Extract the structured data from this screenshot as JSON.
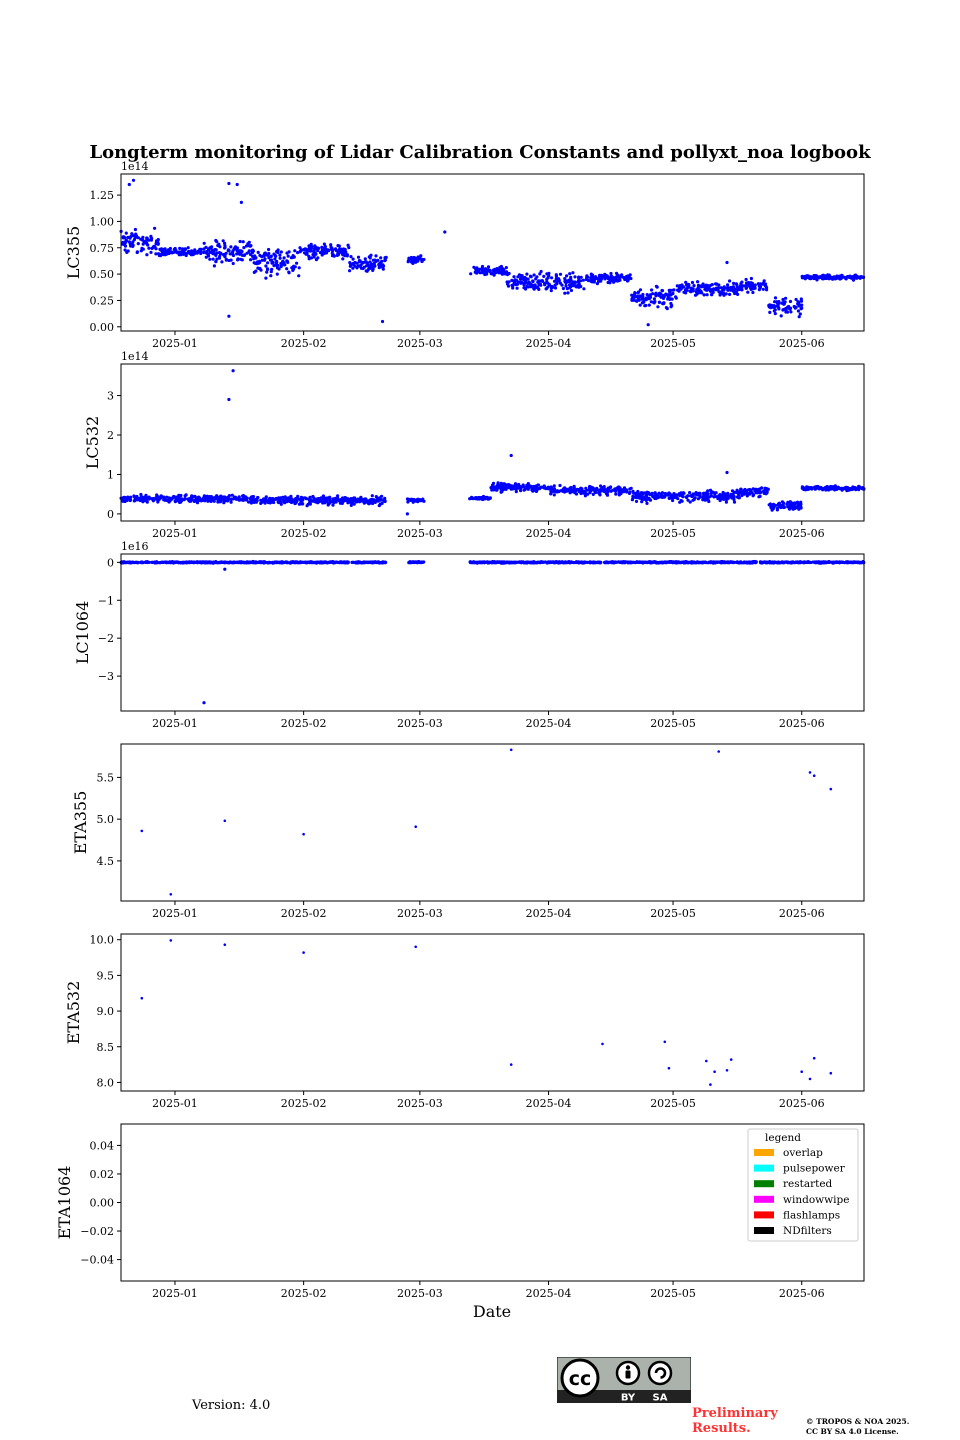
{
  "figure": {
    "title": "Longterm monitoring of Lidar Calibration Constants and pollyxt_noa logbook",
    "xlabel": "Date",
    "version_text": "Version: 4.0",
    "preliminary_text": "Preliminary Results.",
    "copyright_line1": "© TROPOS & NOA 2025.",
    "copyright_line2": "CC BY SA 4.0 License.",
    "license_badge": {
      "by": "BY",
      "sa": "SA",
      "cc": "cc"
    }
  },
  "colors": {
    "points": "#0000ff",
    "axis": "#000000",
    "badge_bg": "#aab2ab",
    "badge_dark": "#222222"
  },
  "chart_data": [
    {
      "type": "scatter",
      "name": "LC355",
      "ylabel": "LC355",
      "exponent_label": "1e14",
      "xlim": [
        "2024-12-19",
        "2025-06-16"
      ],
      "ylim": [
        -0.04,
        1.45
      ],
      "yticks": [
        0.0,
        0.25,
        0.5,
        0.75,
        1.0,
        1.25
      ],
      "ytick_labels": [
        "0.00",
        "0.25",
        "0.50",
        "0.75",
        "1.00",
        "1.25"
      ],
      "xticks": [
        "2025-01-01",
        "2025-02-01",
        "2025-03-01",
        "2025-04-01",
        "2025-05-01",
        "2025-06-01"
      ],
      "xtick_labels": [
        "2025-01",
        "2025-02",
        "2025-03",
        "2025-04",
        "2025-05",
        "2025-06"
      ],
      "segments": [
        {
          "start": "2024-12-19",
          "end": "2024-12-28",
          "mean": 0.8,
          "spread": 0.18
        },
        {
          "start": "2024-12-28",
          "end": "2025-01-08",
          "mean": 0.71,
          "spread": 0.05
        },
        {
          "start": "2025-01-08",
          "end": "2025-01-20",
          "mean": 0.72,
          "spread": 0.16
        },
        {
          "start": "2025-01-20",
          "end": "2025-01-31",
          "mean": 0.62,
          "spread": 0.2
        },
        {
          "start": "2025-01-31",
          "end": "2025-02-12",
          "mean": 0.72,
          "spread": 0.1
        },
        {
          "start": "2025-02-12",
          "end": "2025-02-21",
          "mean": 0.6,
          "spread": 0.12
        },
        {
          "start": "2025-02-26",
          "end": "2025-03-02",
          "mean": 0.64,
          "spread": 0.05
        },
        {
          "start": "2025-03-13",
          "end": "2025-03-22",
          "mean": 0.53,
          "spread": 0.05
        },
        {
          "start": "2025-03-22",
          "end": "2025-04-10",
          "mean": 0.42,
          "spread": 0.12
        },
        {
          "start": "2025-04-10",
          "end": "2025-04-21",
          "mean": 0.46,
          "spread": 0.06
        },
        {
          "start": "2025-04-21",
          "end": "2025-05-02",
          "mean": 0.28,
          "spread": 0.14
        },
        {
          "start": "2025-05-02",
          "end": "2025-05-17",
          "mean": 0.36,
          "spread": 0.1
        },
        {
          "start": "2025-05-17",
          "end": "2025-05-24",
          "mean": 0.39,
          "spread": 0.08
        },
        {
          "start": "2025-05-24",
          "end": "2025-06-01",
          "mean": 0.2,
          "spread": 0.12
        },
        {
          "start": "2025-06-01",
          "end": "2025-06-16",
          "mean": 0.47,
          "spread": 0.03
        }
      ],
      "outliers": [
        {
          "date": "2024-12-21",
          "value": 1.35
        },
        {
          "date": "2024-12-22",
          "value": 1.39
        },
        {
          "date": "2025-01-14",
          "value": 1.36
        },
        {
          "date": "2025-01-16",
          "value": 1.35
        },
        {
          "date": "2025-01-17",
          "value": 1.18
        },
        {
          "date": "2025-01-14",
          "value": 0.1
        },
        {
          "date": "2025-02-20",
          "value": 0.05
        },
        {
          "date": "2025-03-07",
          "value": 0.9
        },
        {
          "date": "2025-04-25",
          "value": 0.02
        },
        {
          "date": "2025-05-14",
          "value": 0.61
        }
      ]
    },
    {
      "type": "scatter",
      "name": "LC532",
      "ylabel": "LC532",
      "exponent_label": "1e14",
      "xlim": [
        "2024-12-19",
        "2025-06-16"
      ],
      "ylim": [
        -0.18,
        3.8
      ],
      "yticks": [
        0,
        1,
        2,
        3
      ],
      "ytick_labels": [
        "0",
        "1",
        "2",
        "3"
      ],
      "xticks": [
        "2025-01-01",
        "2025-02-01",
        "2025-03-01",
        "2025-04-01",
        "2025-05-01",
        "2025-06-01"
      ],
      "xtick_labels": [
        "2025-01",
        "2025-02",
        "2025-03",
        "2025-04",
        "2025-05",
        "2025-06"
      ],
      "segments": [
        {
          "start": "2024-12-19",
          "end": "2025-01-20",
          "mean": 0.38,
          "spread": 0.12
        },
        {
          "start": "2025-01-20",
          "end": "2025-02-21",
          "mean": 0.34,
          "spread": 0.14
        },
        {
          "start": "2025-02-26",
          "end": "2025-03-02",
          "mean": 0.35,
          "spread": 0.06
        },
        {
          "start": "2025-03-13",
          "end": "2025-03-18",
          "mean": 0.4,
          "spread": 0.05
        },
        {
          "start": "2025-03-18",
          "end": "2025-04-01",
          "mean": 0.68,
          "spread": 0.15
        },
        {
          "start": "2025-04-01",
          "end": "2025-04-21",
          "mean": 0.6,
          "spread": 0.15
        },
        {
          "start": "2025-04-21",
          "end": "2025-05-17",
          "mean": 0.45,
          "spread": 0.2
        },
        {
          "start": "2025-05-17",
          "end": "2025-05-24",
          "mean": 0.55,
          "spread": 0.15
        },
        {
          "start": "2025-05-24",
          "end": "2025-06-01",
          "mean": 0.2,
          "spread": 0.15
        },
        {
          "start": "2025-06-01",
          "end": "2025-06-16",
          "mean": 0.65,
          "spread": 0.07
        }
      ],
      "outliers": [
        {
          "date": "2025-01-14",
          "value": 2.9
        },
        {
          "date": "2025-01-15",
          "value": 3.63
        },
        {
          "date": "2025-03-23",
          "value": 1.48
        },
        {
          "date": "2025-05-14",
          "value": 1.05
        },
        {
          "date": "2025-02-26",
          "value": 0.0
        }
      ]
    },
    {
      "type": "scatter",
      "name": "LC1064",
      "ylabel": "LC1064",
      "exponent_label": "1e16",
      "xlim": [
        "2024-12-19",
        "2025-06-16"
      ],
      "ylim": [
        -3.92,
        0.22
      ],
      "yticks": [
        0,
        -1,
        -2,
        -3
      ],
      "ytick_labels": [
        "0",
        "−1",
        "−2",
        "−3"
      ],
      "xticks": [
        "2025-01-01",
        "2025-02-01",
        "2025-03-01",
        "2025-04-01",
        "2025-05-01",
        "2025-06-01"
      ],
      "xtick_labels": [
        "2025-01",
        "2025-02",
        "2025-03",
        "2025-04",
        "2025-05",
        "2025-06"
      ],
      "segments": [
        {
          "start": "2024-12-19",
          "end": "2025-02-21",
          "mean": 0.0,
          "spread": 0.025
        },
        {
          "start": "2025-02-26",
          "end": "2025-03-02",
          "mean": 0.0,
          "spread": 0.025
        },
        {
          "start": "2025-03-13",
          "end": "2025-06-16",
          "mean": 0.0,
          "spread": 0.025
        }
      ],
      "outliers": [
        {
          "date": "2025-01-08",
          "value": -3.7
        },
        {
          "date": "2025-01-13",
          "value": -0.18
        }
      ]
    },
    {
      "type": "scatter",
      "name": "ETA355",
      "ylabel": "ETA355",
      "xlim": [
        "2024-12-19",
        "2025-06-16"
      ],
      "ylim": [
        4.02,
        5.9
      ],
      "yticks": [
        4.5,
        5.0,
        5.5
      ],
      "ytick_labels": [
        "4.5",
        "5.0",
        "5.5"
      ],
      "xticks": [
        "2025-01-01",
        "2025-02-01",
        "2025-03-01",
        "2025-04-01",
        "2025-05-01",
        "2025-06-01"
      ],
      "xtick_labels": [
        "2025-01",
        "2025-02",
        "2025-03",
        "2025-04",
        "2025-05",
        "2025-06"
      ],
      "points": [
        {
          "date": "2024-12-24",
          "value": 4.86
        },
        {
          "date": "2024-12-31",
          "value": 4.1
        },
        {
          "date": "2025-01-13",
          "value": 4.98
        },
        {
          "date": "2025-02-01",
          "value": 4.82
        },
        {
          "date": "2025-02-28",
          "value": 4.91
        },
        {
          "date": "2025-03-23",
          "value": 5.83
        },
        {
          "date": "2025-05-12",
          "value": 5.81
        },
        {
          "date": "2025-06-03",
          "value": 5.56
        },
        {
          "date": "2025-06-04",
          "value": 5.52
        },
        {
          "date": "2025-06-08",
          "value": 5.36
        }
      ]
    },
    {
      "type": "scatter",
      "name": "ETA532",
      "ylabel": "ETA532",
      "xlim": [
        "2024-12-19",
        "2025-06-16"
      ],
      "ylim": [
        7.88,
        10.08
      ],
      "yticks": [
        8.0,
        8.5,
        9.0,
        9.5,
        10.0
      ],
      "ytick_labels": [
        "8.0",
        "8.5",
        "9.0",
        "9.5",
        "10.0"
      ],
      "xticks": [
        "2025-01-01",
        "2025-02-01",
        "2025-03-01",
        "2025-04-01",
        "2025-05-01",
        "2025-06-01"
      ],
      "xtick_labels": [
        "2025-01",
        "2025-02",
        "2025-03",
        "2025-04",
        "2025-05",
        "2025-06"
      ],
      "points": [
        {
          "date": "2024-12-24",
          "value": 9.18
        },
        {
          "date": "2024-12-31",
          "value": 9.99
        },
        {
          "date": "2025-01-13",
          "value": 9.93
        },
        {
          "date": "2025-02-01",
          "value": 9.82
        },
        {
          "date": "2025-02-28",
          "value": 9.9
        },
        {
          "date": "2025-03-23",
          "value": 8.25
        },
        {
          "date": "2025-04-14",
          "value": 8.54
        },
        {
          "date": "2025-04-29",
          "value": 8.57
        },
        {
          "date": "2025-04-30",
          "value": 8.2
        },
        {
          "date": "2025-05-09",
          "value": 8.3
        },
        {
          "date": "2025-05-10",
          "value": 7.97
        },
        {
          "date": "2025-05-11",
          "value": 8.15
        },
        {
          "date": "2025-05-14",
          "value": 8.17
        },
        {
          "date": "2025-05-15",
          "value": 8.32
        },
        {
          "date": "2025-06-01",
          "value": 8.15
        },
        {
          "date": "2025-06-03",
          "value": 8.05
        },
        {
          "date": "2025-06-04",
          "value": 8.34
        },
        {
          "date": "2025-06-08",
          "value": 8.13
        }
      ]
    },
    {
      "type": "scatter",
      "name": "ETA1064",
      "ylabel": "ETA1064",
      "xlim": [
        "2024-12-19",
        "2025-06-16"
      ],
      "ylim": [
        -0.055,
        0.055
      ],
      "yticks": [
        0.04,
        0.02,
        0.0,
        -0.02,
        -0.04
      ],
      "ytick_labels": [
        "0.04",
        "0.02",
        "0.00",
        "−0.02",
        "−0.04"
      ],
      "xticks": [
        "2025-01-01",
        "2025-02-01",
        "2025-03-01",
        "2025-04-01",
        "2025-05-01",
        "2025-06-01"
      ],
      "xtick_labels": [
        "2025-01",
        "2025-02",
        "2025-03",
        "2025-04",
        "2025-05",
        "2025-06"
      ],
      "points": [],
      "legend": {
        "title": "legend",
        "placement": "top-right",
        "entries": [
          {
            "label": "overlap",
            "color": "#ffa500"
          },
          {
            "label": "pulsepower",
            "color": "#00ffff"
          },
          {
            "label": "restarted",
            "color": "#008000"
          },
          {
            "label": "windowwipe",
            "color": "#ff00ff"
          },
          {
            "label": "flashlamps",
            "color": "#ff0000"
          },
          {
            "label": "NDfilters",
            "color": "#000000"
          }
        ]
      }
    }
  ]
}
